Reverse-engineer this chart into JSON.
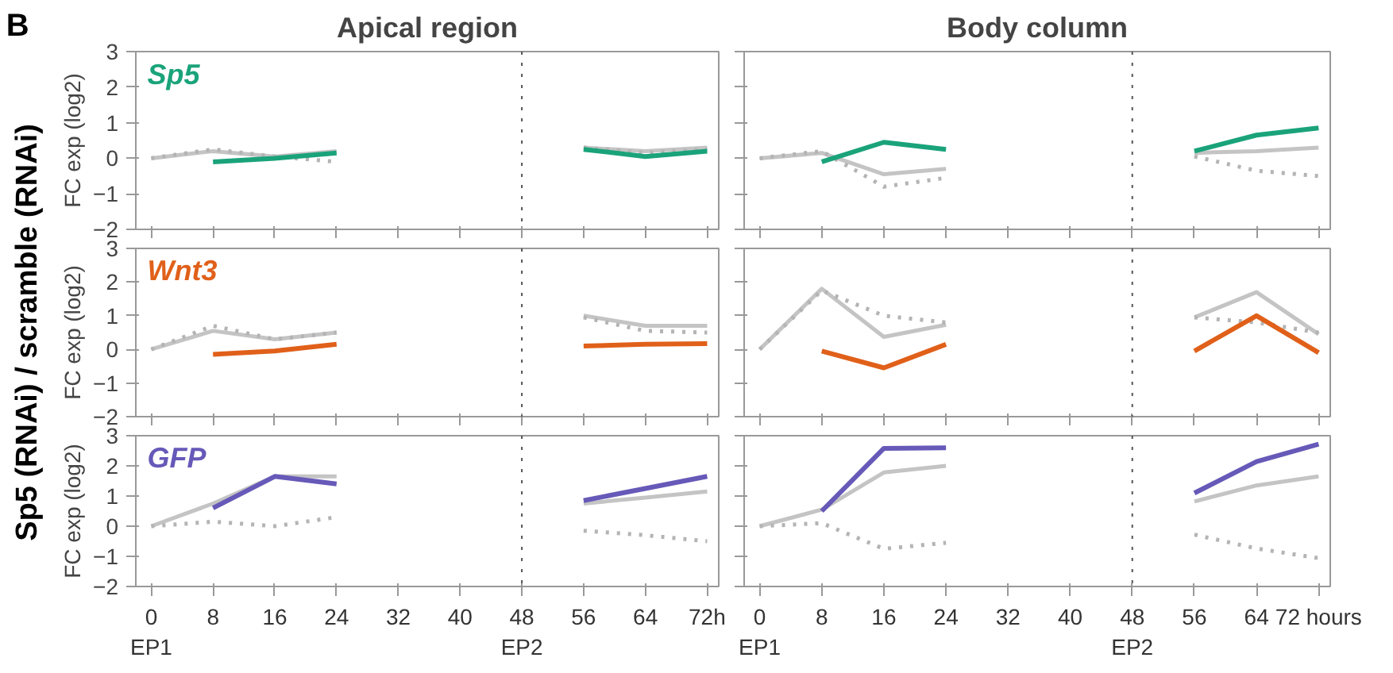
{
  "chart_data": [
    {
      "type": "line",
      "title": "Apical region",
      "subtitle": "Sp5",
      "ylabel": "FC exp (log2)",
      "annotations": [
        "B"
      ],
      "x": [
        0,
        8,
        16,
        24,
        48,
        56,
        64,
        72
      ],
      "xlim": [
        -2,
        73.5
      ],
      "ylim": [
        -2,
        3
      ],
      "xticks": [
        0,
        8,
        16,
        24,
        32,
        40,
        48,
        56,
        64,
        72
      ],
      "yticks": [
        -2,
        -1,
        0,
        1,
        2,
        3
      ],
      "tick_labels": "y",
      "grid": false,
      "ref_lines": [
        {
          "axis": "x",
          "value": 48,
          "color": "#555555",
          "line_style": "dotted"
        }
      ],
      "series": [
        {
          "color": "#c4c4c4",
          "line_style": "solid",
          "values": [
            0,
            0.2,
            0.05,
            0.2,
            null,
            0.3,
            0.2,
            0.3
          ]
        },
        {
          "color": "#b4b4b4",
          "line_style": "dotted",
          "values": [
            0,
            0.25,
            0.05,
            -0.1,
            null,
            0.3,
            0.15,
            0.25
          ]
        },
        {
          "color": "#1aa37a",
          "line_style": "solid",
          "values": [
            null,
            -0.1,
            0.0,
            0.15,
            null,
            0.25,
            0.05,
            0.2
          ]
        }
      ]
    },
    {
      "type": "line",
      "title": "Body column",
      "x": [
        0,
        8,
        16,
        24,
        48,
        56,
        64,
        72
      ],
      "xlim": [
        -2,
        73.5
      ],
      "ylim": [
        -2,
        3
      ],
      "xticks": [
        0,
        8,
        16,
        24,
        32,
        40,
        48,
        56,
        64,
        72
      ],
      "yticks": [
        -2,
        -1,
        0,
        1,
        2,
        3
      ],
      "tick_labels": false,
      "grid": false,
      "ref_lines": [
        {
          "axis": "x",
          "value": 48,
          "color": "#555555",
          "line_style": "dotted"
        }
      ],
      "series": [
        {
          "color": "#c4c4c4",
          "line_style": "solid",
          "values": [
            0,
            0.15,
            -0.45,
            -0.3,
            null,
            0.15,
            0.2,
            0.3
          ]
        },
        {
          "color": "#b4b4b4",
          "line_style": "dotted",
          "values": [
            0,
            0.2,
            -0.8,
            -0.55,
            null,
            0.05,
            -0.35,
            -0.5
          ]
        },
        {
          "color": "#1aa37a",
          "line_style": "solid",
          "values": [
            null,
            -0.1,
            0.45,
            0.25,
            null,
            0.2,
            0.65,
            0.85
          ]
        }
      ]
    },
    {
      "type": "line",
      "subtitle": "Wnt3",
      "ylabel": "FC exp (log2)",
      "annotations": [
        "Sp5 (RNAi) / scramble (RNAi)"
      ],
      "x": [
        0,
        8,
        16,
        24,
        48,
        56,
        64,
        72
      ],
      "xlim": [
        -2,
        73.5
      ],
      "ylim": [
        -2,
        3
      ],
      "xticks": [
        0,
        8,
        16,
        24,
        32,
        40,
        48,
        56,
        64,
        72
      ],
      "yticks": [
        -2,
        -1,
        0,
        1,
        2,
        3
      ],
      "tick_labels": "y",
      "grid": false,
      "ref_lines": [
        {
          "axis": "x",
          "value": 48,
          "color": "#555555",
          "line_style": "dotted"
        }
      ],
      "series": [
        {
          "color": "#c4c4c4",
          "line_style": "solid",
          "values": [
            0,
            0.55,
            0.3,
            0.5,
            null,
            1.0,
            0.7,
            0.7
          ]
        },
        {
          "color": "#b4b4b4",
          "line_style": "dotted",
          "values": [
            0,
            0.7,
            0.3,
            0.5,
            null,
            0.95,
            0.55,
            0.5
          ]
        },
        {
          "color": "#e0601a",
          "line_style": "solid",
          "values": [
            null,
            -0.15,
            -0.05,
            0.15,
            null,
            0.1,
            0.15,
            0.17
          ]
        }
      ]
    },
    {
      "type": "line",
      "x": [
        0,
        8,
        16,
        24,
        48,
        56,
        64,
        72
      ],
      "xlim": [
        -2,
        73.5
      ],
      "ylim": [
        -2,
        3
      ],
      "xticks": [
        0,
        8,
        16,
        24,
        32,
        40,
        48,
        56,
        64,
        72
      ],
      "yticks": [
        -2,
        -1,
        0,
        1,
        2,
        3
      ],
      "tick_labels": false,
      "grid": false,
      "ref_lines": [
        {
          "axis": "x",
          "value": 48,
          "color": "#555555",
          "line_style": "dotted"
        }
      ],
      "series": [
        {
          "color": "#c4c4c4",
          "line_style": "solid",
          "values": [
            0,
            1.8,
            0.37,
            0.73,
            null,
            0.95,
            1.7,
            0.45
          ]
        },
        {
          "color": "#b4b4b4",
          "line_style": "dotted",
          "values": [
            0,
            1.75,
            1.0,
            0.8,
            null,
            0.95,
            0.8,
            0.5
          ]
        },
        {
          "color": "#e0601a",
          "line_style": "solid",
          "values": [
            null,
            -0.05,
            -0.55,
            0.15,
            null,
            -0.05,
            1.0,
            -0.1
          ]
        }
      ]
    },
    {
      "type": "line",
      "subtitle": "GFP",
      "ylabel": "FC exp (log2)",
      "x": [
        0,
        8,
        16,
        24,
        48,
        56,
        64,
        72
      ],
      "xlim": [
        -2,
        73.5
      ],
      "ylim": [
        -2,
        3
      ],
      "xticks": [
        {
          "value": 0,
          "label": "0\nEP1"
        },
        8,
        16,
        24,
        32,
        40,
        {
          "value": 48,
          "label": "48\nEP2"
        },
        56,
        64,
        {
          "value": 72,
          "label": "72h"
        }
      ],
      "yticks": [
        -2,
        -1,
        0,
        1,
        2,
        3
      ],
      "grid": false,
      "ref_lines": [
        {
          "axis": "x",
          "value": 48,
          "color": "#555555",
          "line_style": "dotted"
        }
      ],
      "series": [
        {
          "color": "#c4c4c4",
          "line_style": "solid",
          "values": [
            0,
            0.75,
            1.65,
            1.65,
            null,
            0.75,
            0.95,
            1.15
          ]
        },
        {
          "color": "#b4b4b4",
          "line_style": "dotted",
          "values": [
            0,
            0.15,
            0.0,
            0.3,
            null,
            -0.15,
            -0.3,
            -0.5
          ]
        },
        {
          "color": "#6659b8",
          "line_style": "solid",
          "values": [
            null,
            0.6,
            1.65,
            1.4,
            null,
            0.85,
            1.25,
            1.65
          ]
        }
      ]
    },
    {
      "type": "line",
      "x": [
        0,
        8,
        16,
        24,
        48,
        56,
        64,
        72
      ],
      "xlim": [
        -2,
        73.5
      ],
      "ylim": [
        -2,
        3
      ],
      "xticks": [
        {
          "value": 0,
          "label": "0\nEP1"
        },
        8,
        16,
        24,
        32,
        40,
        {
          "value": 48,
          "label": "48\nEP2"
        },
        56,
        64,
        {
          "value": 72,
          "label": "72 hours"
        }
      ],
      "yticks": [
        -2,
        -1,
        0,
        1,
        2,
        3
      ],
      "tick_labels": "x",
      "grid": false,
      "ref_lines": [
        {
          "axis": "x",
          "value": 48,
          "color": "#555555",
          "line_style": "dotted"
        }
      ],
      "series": [
        {
          "color": "#c4c4c4",
          "line_style": "solid",
          "values": [
            0,
            0.55,
            1.78,
            2.0,
            null,
            0.82,
            1.35,
            1.65
          ]
        },
        {
          "color": "#b4b4b4",
          "line_style": "dotted",
          "values": [
            0,
            0.1,
            -0.75,
            -0.55,
            null,
            -0.28,
            -0.74,
            -1.06
          ]
        },
        {
          "color": "#6659b8",
          "line_style": "solid",
          "values": [
            null,
            0.5,
            2.58,
            2.6,
            null,
            1.1,
            2.14,
            2.72
          ]
        }
      ]
    }
  ]
}
